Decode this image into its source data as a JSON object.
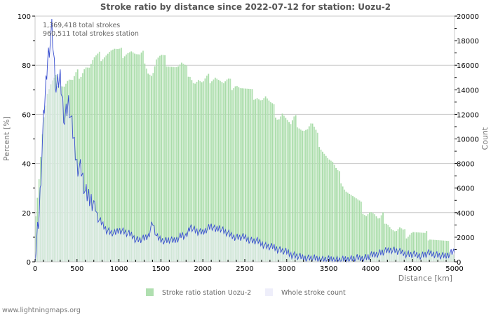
{
  "footer": "www.lightningmaps.org",
  "chart_data": {
    "type": "bar",
    "title": "Stroke ratio by distance since 2022-07-12 for station: Uozu-2",
    "xlabel": "Distance   [km]",
    "ylabel_left": "Percent   [%]",
    "ylabel_right": "Count",
    "xlim": [
      0,
      5000
    ],
    "ylim_left": [
      0,
      100
    ],
    "ylim_right": [
      0,
      20000
    ],
    "x_ticks": [
      "0",
      "500",
      "1000",
      "1500",
      "2000",
      "2500",
      "3000",
      "3500",
      "4000",
      "4500",
      "5000"
    ],
    "y_ticks_left": [
      "0",
      "20",
      "40",
      "60",
      "80",
      "100"
    ],
    "y_ticks_right": [
      "0",
      "2000",
      "4000",
      "6000",
      "8000",
      "10000",
      "12000",
      "14000",
      "16000",
      "18000",
      "20000"
    ],
    "grid": true,
    "annotations": [
      "1,369,418 total strokes",
      "960,511 total strokes station"
    ],
    "legend": {
      "position": "bottom",
      "entries": [
        "Stroke ratio station Uozu-2",
        "Whole stroke count"
      ]
    },
    "colors": {
      "ratio_bar": "#b0dfb0",
      "count_fill": "#eeeefa",
      "count_line": "#3a50d0",
      "grid": "#c8c8c8"
    },
    "x_step_km": 50,
    "series": [
      {
        "name": "Stroke ratio station Uozu-2",
        "axis": "left",
        "unit": "%",
        "x": [
          0,
          50,
          100,
          150,
          200,
          250,
          300,
          350,
          400,
          450,
          500,
          550,
          600,
          650,
          700,
          750,
          800,
          850,
          900,
          950,
          1000,
          1050,
          1100,
          1150,
          1200,
          1250,
          1300,
          1350,
          1400,
          1450,
          1500,
          1550,
          1600,
          1650,
          1700,
          1750,
          1800,
          1850,
          1900,
          1950,
          2000,
          2050,
          2100,
          2150,
          2200,
          2250,
          2300,
          2350,
          2400,
          2450,
          2500,
          2550,
          2600,
          2650,
          2700,
          2750,
          2800,
          2850,
          2900,
          2950,
          3000,
          3050,
          3100,
          3150,
          3200,
          3250,
          3300,
          3350,
          3400,
          3450,
          3500,
          3550,
          3600,
          3650,
          3700,
          3750,
          3800,
          3850,
          3900,
          3950,
          4000,
          4050,
          4100,
          4150,
          4200,
          4250,
          4300,
          4350,
          4400,
          4450,
          4500,
          4550,
          4600,
          4650,
          4700,
          4750,
          4800,
          4850,
          4900,
          4950,
          5000
        ],
        "values": [
          17,
          35,
          57,
          68,
          72,
          74,
          73,
          72,
          74,
          73,
          76,
          77,
          80,
          79,
          82,
          83,
          84,
          85,
          86,
          86,
          85,
          85,
          86,
          86,
          84,
          83,
          84,
          78,
          76,
          82,
          83,
          82,
          81,
          80,
          79,
          80,
          78,
          77,
          73,
          74,
          72,
          74,
          75,
          76,
          74,
          72,
          73,
          72,
          73,
          71,
          70,
          69,
          68,
          68,
          66,
          67,
          64,
          62,
          59,
          61,
          58,
          55,
          58,
          56,
          54,
          54,
          56,
          52,
          48,
          45,
          42,
          40,
          36,
          34,
          30,
          28,
          26,
          24,
          22,
          20,
          21,
          19,
          16,
          18,
          17,
          14,
          12,
          13,
          11,
          12,
          13,
          12,
          11,
          10,
          11,
          10,
          9,
          8,
          7,
          6,
          4
        ]
      },
      {
        "name": "Whole stroke count",
        "axis": "right",
        "unit": "strokes",
        "x": [
          0,
          50,
          100,
          150,
          200,
          250,
          300,
          350,
          400,
          450,
          500,
          550,
          600,
          650,
          700,
          750,
          800,
          850,
          900,
          950,
          1000,
          1050,
          1100,
          1150,
          1200,
          1250,
          1300,
          1350,
          1400,
          1450,
          1500,
          1550,
          1600,
          1650,
          1700,
          1750,
          1800,
          1850,
          1900,
          1950,
          2000,
          2050,
          2100,
          2150,
          2200,
          2250,
          2300,
          2350,
          2400,
          2450,
          2500,
          2550,
          2600,
          2650,
          2700,
          2750,
          2800,
          2850,
          2900,
          2950,
          3000,
          3050,
          3100,
          3150,
          3200,
          3250,
          3300,
          3350,
          3400,
          3450,
          3500,
          3550,
          3600,
          3650,
          3700,
          3750,
          3800,
          3850,
          3900,
          3950,
          4000,
          4050,
          4100,
          4150,
          4200,
          4250,
          4300,
          4350,
          4400,
          4450,
          4500,
          4550,
          4600,
          4650,
          4700,
          4750,
          4800,
          4850,
          4900,
          4950,
          5000
        ],
        "values": [
          200,
          4000,
          11500,
          16500,
          19000,
          14000,
          15000,
          11500,
          13000,
          10500,
          7900,
          7500,
          5500,
          5200,
          4900,
          3500,
          3100,
          2600,
          2400,
          2300,
          2600,
          2500,
          2300,
          2200,
          1800,
          1800,
          1900,
          2100,
          3200,
          2000,
          1800,
          1700,
          1800,
          1700,
          1900,
          2200,
          2000,
          2900,
          2600,
          2400,
          2400,
          2700,
          2900,
          2600,
          2800,
          2500,
          2300,
          2100,
          2000,
          2000,
          2000,
          1800,
          1700,
          1700,
          1500,
          1300,
          1200,
          1200,
          1000,
          900,
          800,
          600,
          500,
          400,
          350,
          300,
          300,
          250,
          200,
          200,
          200,
          200,
          150,
          150,
          200,
          250,
          250,
          300,
          300,
          350,
          500,
          600,
          700,
          800,
          900,
          1000,
          900,
          800,
          700,
          600,
          600,
          550,
          500,
          600,
          700,
          650,
          550,
          450,
          500,
          700,
          900
        ]
      }
    ]
  }
}
